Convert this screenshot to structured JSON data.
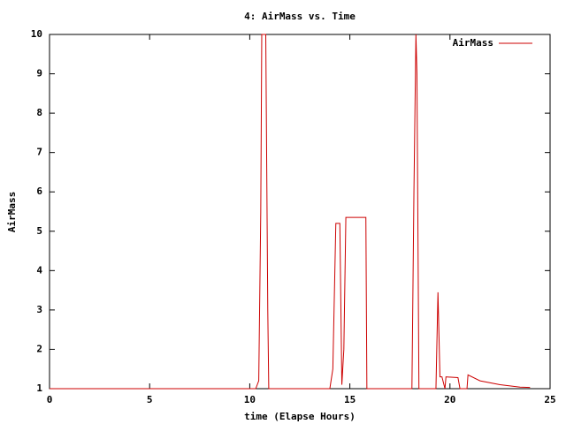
{
  "chart_data": {
    "type": "line",
    "title": "4: AirMass vs. Time",
    "x_label": "time (Elapse Hours)",
    "y_label": "AirMass",
    "x": [
      0,
      10.3,
      10.45,
      10.55,
      10.6,
      10.8,
      10.9,
      10.95,
      14.0,
      14.15,
      14.3,
      14.5,
      14.6,
      14.7,
      14.8,
      15.8,
      15.85,
      18.1,
      18.2,
      18.3,
      18.35,
      18.45,
      19.3,
      19.4,
      19.5,
      19.6,
      19.75,
      19.8,
      20.4,
      20.5,
      20.85,
      20.9,
      21.5,
      22.5,
      23.5,
      24.0
    ],
    "series": [
      {
        "name": "AirMass",
        "color": "#cc0000",
        "values": [
          1,
          1,
          1.2,
          5.5,
          10,
          10,
          3,
          1,
          1,
          1.5,
          5.2,
          5.2,
          1.1,
          2,
          5.35,
          5.35,
          1,
          1,
          6,
          10,
          9,
          1,
          1,
          3.45,
          1.3,
          1.3,
          1,
          1.3,
          1.28,
          1,
          1,
          1.35,
          1.2,
          1.1,
          1.04,
          1.03
        ]
      }
    ],
    "xlim": [
      0,
      25
    ],
    "xticks": [
      0,
      5,
      10,
      15,
      20,
      25
    ],
    "ylim": [
      1,
      10
    ],
    "yticks": [
      1,
      2,
      3,
      4,
      5,
      6,
      7,
      8,
      9,
      10
    ],
    "legend": "top right",
    "grid": false
  }
}
